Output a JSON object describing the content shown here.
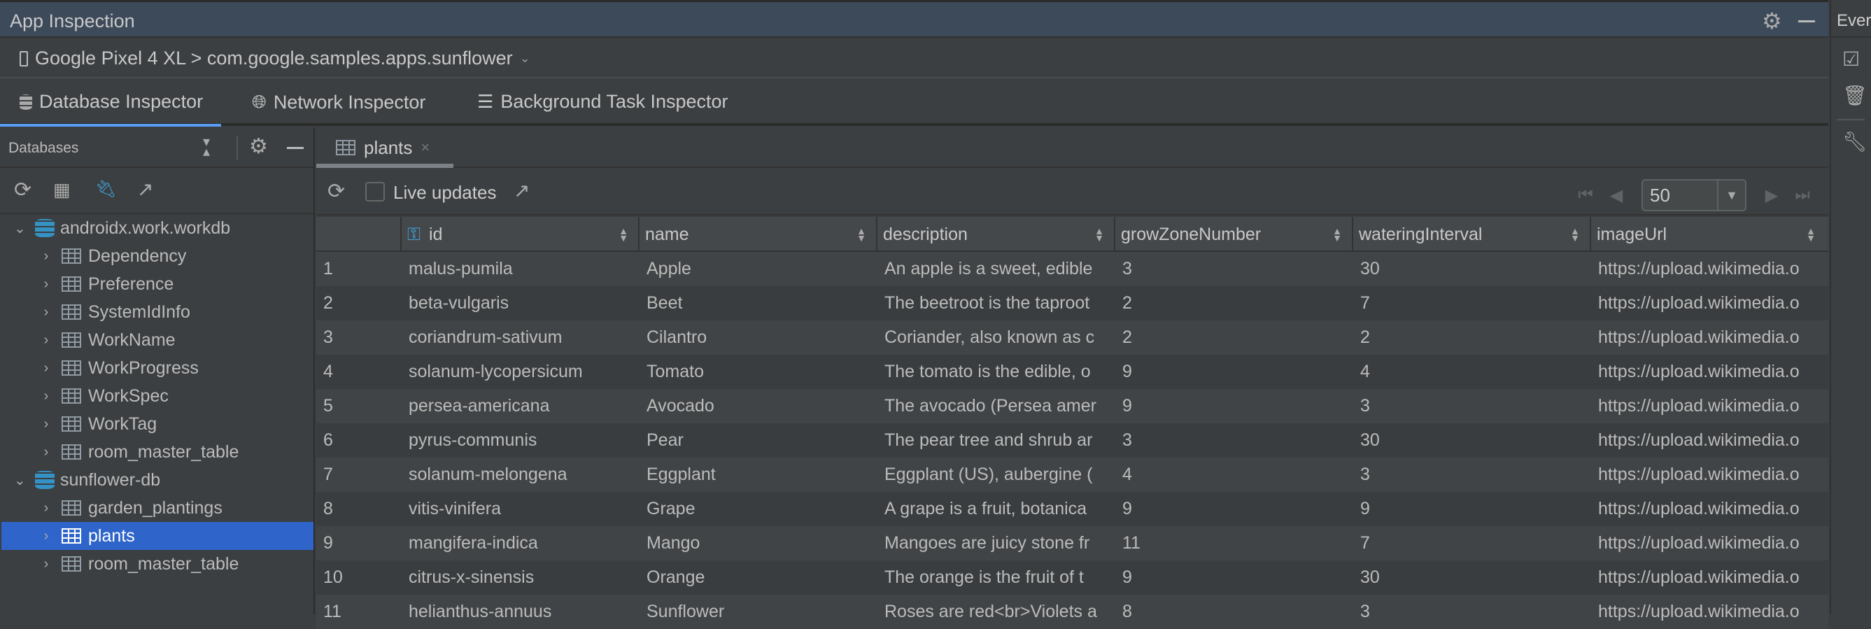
{
  "window": {
    "title": "App Inspection",
    "right_panel_title": "Ever"
  },
  "device": {
    "selector": "Google Pixel 4 XL > com.google.samples.apps.sunflower"
  },
  "tabs": [
    {
      "label": "Database Inspector",
      "active": true
    },
    {
      "label": "Network Inspector"
    },
    {
      "label": "Background Task Inspector"
    }
  ],
  "databases_panel": {
    "title": "Databases"
  },
  "tree": [
    {
      "type": "db",
      "label": "androidx.work.workdb",
      "expanded": true
    },
    {
      "type": "table",
      "label": "Dependency"
    },
    {
      "type": "table",
      "label": "Preference"
    },
    {
      "type": "table",
      "label": "SystemIdInfo"
    },
    {
      "type": "table",
      "label": "WorkName"
    },
    {
      "type": "table",
      "label": "WorkProgress"
    },
    {
      "type": "table",
      "label": "WorkSpec"
    },
    {
      "type": "table",
      "label": "WorkTag"
    },
    {
      "type": "table",
      "label": "room_master_table"
    },
    {
      "type": "db",
      "label": "sunflower-db",
      "expanded": true
    },
    {
      "type": "table",
      "label": "garden_plantings"
    },
    {
      "type": "table",
      "label": "plants",
      "selected": true
    },
    {
      "type": "table",
      "label": "room_master_table"
    }
  ],
  "open_tab": {
    "label": "plants"
  },
  "toolbar": {
    "live_updates_label": "Live updates",
    "live_updates_checked": false,
    "page_size": "50"
  },
  "table": {
    "columns": [
      "",
      "id",
      "name",
      "description",
      "growZoneNumber",
      "wateringInterval",
      "imageUrl"
    ],
    "rows": [
      [
        "1",
        "malus-pumila",
        "Apple",
        "An apple is a sweet, edible",
        "3",
        "30",
        "https://upload.wikimedia.o"
      ],
      [
        "2",
        "beta-vulgaris",
        "Beet",
        "The beetroot is the taproot",
        "2",
        "7",
        "https://upload.wikimedia.o"
      ],
      [
        "3",
        "coriandrum-sativum",
        "Cilantro",
        "Coriander, also known as c",
        "2",
        "2",
        "https://upload.wikimedia.o"
      ],
      [
        "4",
        "solanum-lycopersicum",
        "Tomato",
        "The tomato is the edible, o",
        "9",
        "4",
        "https://upload.wikimedia.o"
      ],
      [
        "5",
        "persea-americana",
        "Avocado",
        "The avocado (Persea amer",
        "9",
        "3",
        "https://upload.wikimedia.o"
      ],
      [
        "6",
        "pyrus-communis",
        "Pear",
        "The pear tree and shrub ar",
        "3",
        "30",
        "https://upload.wikimedia.o"
      ],
      [
        "7",
        "solanum-melongena",
        "Eggplant",
        "Eggplant (US), aubergine (",
        "4",
        "3",
        "https://upload.wikimedia.o"
      ],
      [
        "8",
        "vitis-vinifera",
        "Grape",
        "A grape is a fruit, botanica",
        "9",
        "9",
        "https://upload.wikimedia.o"
      ],
      [
        "9",
        "mangifera-indica",
        "Mango",
        "Mangoes are juicy stone fr",
        "11",
        "7",
        "https://upload.wikimedia.o"
      ],
      [
        "10",
        "citrus-x-sinensis",
        "Orange",
        "The orange is the fruit of t",
        "9",
        "30",
        "https://upload.wikimedia.o"
      ],
      [
        "11",
        "helianthus-annuus",
        "Sunflower",
        "Roses are red<br>Violets a",
        "8",
        "3",
        "https://upload.wikimedia.o"
      ]
    ]
  },
  "colors": {
    "selection": "#2f65ca",
    "accent": "#589df6",
    "db_icon": "#3592c4",
    "key_icon": "#3fa7e0"
  }
}
